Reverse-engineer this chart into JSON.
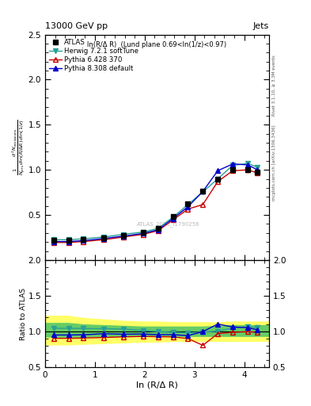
{
  "title_top": "13000 GeV pp",
  "title_right": "Jets",
  "panel_title": "ln(R/Δ R)  (Lund plane 0.69<ln(1/z)<0.97)",
  "watermark": "ATLAS_2020_I1790256",
  "right_label_top": "Rivet 3.1.10, ≥ 3.3M events",
  "right_label_bottom": "mcplots.cern.ch [arXiv:1306.3436]",
  "xlabel": "ln (R/Δ R)",
  "ylabel_main": "$\\frac{1}{N_{\\mathrm{jets}}}\\frac{d^2 N_{\\mathrm{emissions}}}{d\\ln(R/\\Delta R)\\,d\\ln(1/z)}$",
  "ylabel_ratio": "Ratio to ATLAS",
  "xlim": [
    0,
    4.5
  ],
  "ylim_main": [
    0,
    2.5
  ],
  "ylim_ratio": [
    0.5,
    2.0
  ],
  "x_data": [
    0.17,
    0.47,
    0.77,
    1.17,
    1.57,
    1.97,
    2.27,
    2.57,
    2.87,
    3.17,
    3.47,
    3.77,
    4.07,
    4.27
  ],
  "atlas_y": [
    0.215,
    0.215,
    0.225,
    0.245,
    0.275,
    0.305,
    0.35,
    0.48,
    0.625,
    0.76,
    0.895,
    1.0,
    1.0,
    0.975
  ],
  "herwig_y": [
    0.225,
    0.225,
    0.235,
    0.255,
    0.285,
    0.31,
    0.35,
    0.475,
    0.615,
    0.755,
    0.9,
    1.05,
    1.07,
    1.03
  ],
  "pythia6_y": [
    0.195,
    0.195,
    0.205,
    0.225,
    0.255,
    0.285,
    0.325,
    0.445,
    0.565,
    0.615,
    0.87,
    0.99,
    1.0,
    0.965
  ],
  "pythia8_y": [
    0.205,
    0.205,
    0.215,
    0.238,
    0.265,
    0.295,
    0.335,
    0.46,
    0.59,
    0.76,
    0.99,
    1.065,
    1.055,
    1.0
  ],
  "herwig_ratio": [
    1.047,
    1.047,
    1.044,
    1.041,
    1.036,
    1.016,
    1.0,
    0.99,
    0.984,
    0.993,
    1.006,
    1.05,
    1.07,
    1.056
  ],
  "pythia6_ratio": [
    0.907,
    0.907,
    0.911,
    0.918,
    0.927,
    0.934,
    0.929,
    0.927,
    0.904,
    0.809,
    0.972,
    0.99,
    1.0,
    0.99
  ],
  "pythia8_ratio": [
    0.953,
    0.953,
    0.956,
    0.971,
    0.964,
    0.967,
    0.957,
    0.958,
    0.944,
    1.0,
    1.106,
    1.065,
    1.055,
    1.026
  ],
  "band_green_lo": [
    0.93,
    0.93,
    0.93,
    0.94,
    0.94,
    0.94,
    0.94,
    0.94,
    0.94,
    0.94,
    0.94,
    0.94,
    0.94,
    0.94
  ],
  "band_green_hi": [
    1.12,
    1.12,
    1.1,
    1.09,
    1.08,
    1.07,
    1.07,
    1.07,
    1.07,
    1.07,
    1.08,
    1.09,
    1.09,
    1.09
  ],
  "band_yellow_lo": [
    0.82,
    0.82,
    0.83,
    0.84,
    0.85,
    0.86,
    0.86,
    0.87,
    0.87,
    0.87,
    0.87,
    0.87,
    0.87,
    0.87
  ],
  "band_yellow_hi": [
    1.22,
    1.22,
    1.19,
    1.17,
    1.15,
    1.14,
    1.14,
    1.13,
    1.13,
    1.13,
    1.13,
    1.14,
    1.14,
    1.14
  ],
  "atlas_color": "#000000",
  "herwig_color": "#2aa198",
  "pythia6_color": "#cc0000",
  "pythia8_color": "#0000cc",
  "green_band_color": "#66cc66",
  "yellow_band_color": "#ffff66",
  "xticks": [
    0,
    1,
    2,
    3,
    4
  ],
  "yticks_main": [
    0.5,
    1.0,
    1.5,
    2.0,
    2.5
  ],
  "yticks_ratio": [
    0.5,
    1.0,
    1.5,
    2.0
  ]
}
